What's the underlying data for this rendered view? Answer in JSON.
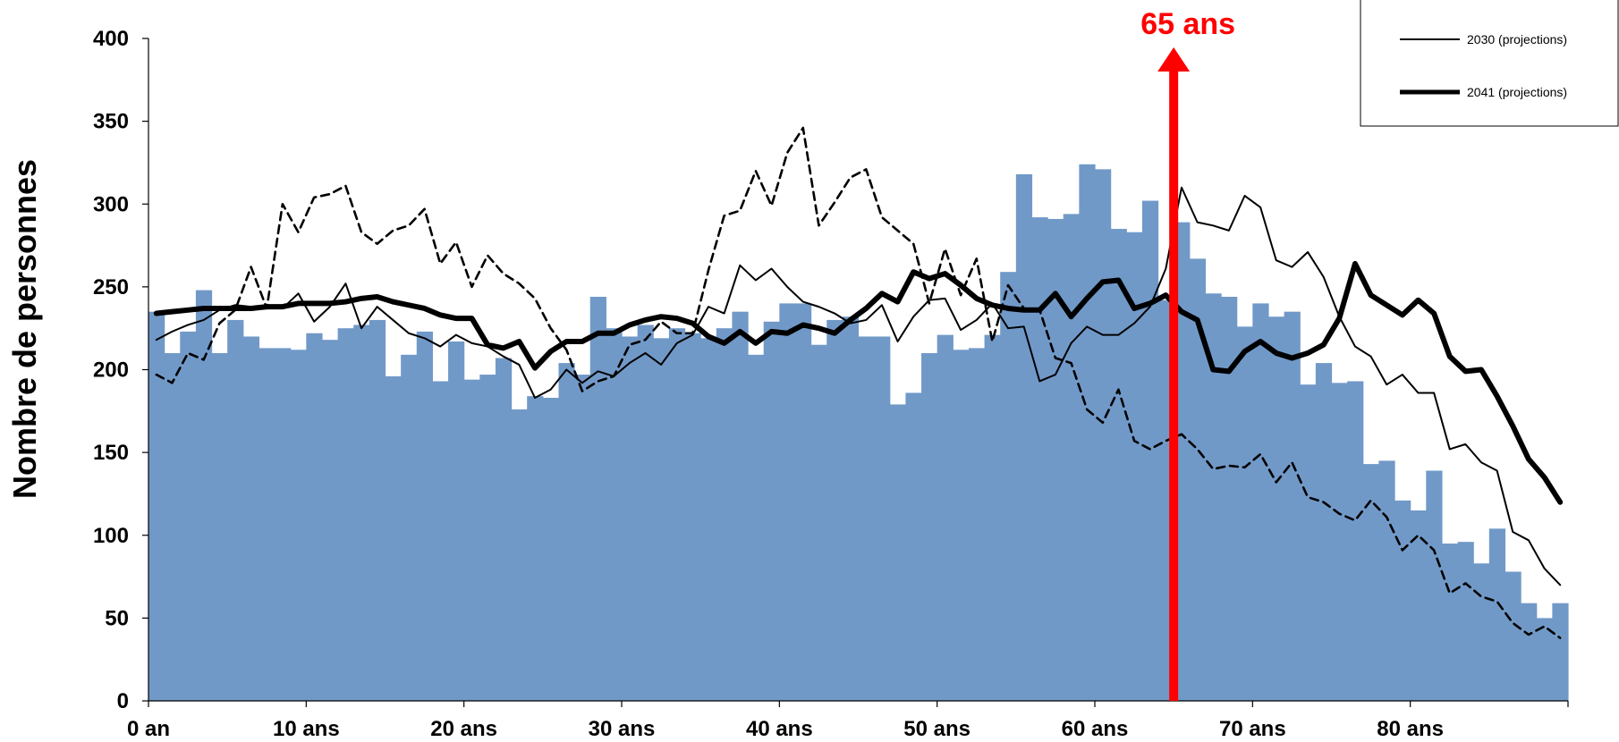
{
  "chart_data": {
    "type": "bar",
    "ylabel": "Nombre de personnes",
    "ylim": [
      0,
      400
    ],
    "yticks": [
      0,
      50,
      100,
      150,
      200,
      250,
      300,
      350,
      400
    ],
    "xlim": [
      0,
      90
    ],
    "xticks": [
      {
        "value": 0,
        "label": "0 an"
      },
      {
        "value": 10,
        "label": "10 ans"
      },
      {
        "value": 20,
        "label": "20 ans"
      },
      {
        "value": 30,
        "label": "30 ans"
      },
      {
        "value": 40,
        "label": "40 ans"
      },
      {
        "value": 50,
        "label": "50 ans"
      },
      {
        "value": 60,
        "label": "60 ans"
      },
      {
        "value": 70,
        "label": "70 ans"
      },
      {
        "value": 80,
        "label": "80 ans"
      }
    ],
    "bar_color": "#7199c8",
    "bars": {
      "x": [
        0,
        1,
        2,
        3,
        4,
        5,
        6,
        7,
        8,
        9,
        10,
        11,
        12,
        13,
        14,
        15,
        16,
        17,
        18,
        19,
        20,
        21,
        22,
        23,
        24,
        25,
        26,
        27,
        28,
        29,
        30,
        31,
        32,
        33,
        34,
        35,
        36,
        37,
        38,
        39,
        40,
        41,
        42,
        43,
        44,
        45,
        46,
        47,
        48,
        49,
        50,
        51,
        52,
        53,
        54,
        55,
        56,
        57,
        58,
        59,
        60,
        61,
        62,
        63,
        64,
        65,
        66,
        67,
        68,
        69,
        70,
        71,
        72,
        73,
        74,
        75,
        76,
        77,
        78,
        79,
        80,
        81,
        82,
        83,
        84,
        85,
        86,
        87,
        88,
        89
      ],
      "values": [
        235,
        210,
        223,
        248,
        210,
        230,
        220,
        213,
        213,
        212,
        222,
        218,
        225,
        227,
        230,
        196,
        209,
        223,
        193,
        217,
        194,
        197,
        207,
        176,
        184,
        183,
        204,
        197,
        244,
        225,
        220,
        227,
        219,
        225,
        222,
        219,
        225,
        235,
        209,
        229,
        240,
        240,
        215,
        230,
        232,
        220,
        220,
        179,
        186,
        210,
        221,
        212,
        213,
        221,
        259,
        318,
        292,
        291,
        294,
        324,
        321,
        285,
        283,
        302,
        242,
        289,
        267,
        246,
        244,
        226,
        240,
        232,
        235,
        191,
        204,
        192,
        193,
        143,
        145,
        121,
        115,
        139,
        95,
        96,
        83,
        104,
        78,
        59,
        50,
        59
      ]
    },
    "series": [
      {
        "label": "2030 (projections)",
        "style": "thin",
        "x": [
          0,
          1,
          2,
          3,
          4,
          5,
          6,
          7,
          8,
          9,
          10,
          11,
          12,
          13,
          14,
          15,
          16,
          17,
          18,
          19,
          20,
          21,
          22,
          23,
          24,
          25,
          26,
          27,
          28,
          29,
          30,
          31,
          32,
          33,
          34,
          35,
          36,
          37,
          38,
          39,
          40,
          41,
          42,
          43,
          44,
          45,
          46,
          47,
          48,
          49,
          50,
          51,
          52,
          53,
          54,
          55,
          56,
          57,
          58,
          59,
          60,
          61,
          62,
          63,
          64,
          65,
          66,
          67,
          68,
          69,
          70,
          71,
          72,
          73,
          74,
          75,
          76,
          77,
          78,
          79,
          80,
          81,
          82,
          83,
          84,
          85,
          86,
          87,
          88,
          89
        ],
        "values": [
          218,
          223,
          227,
          230,
          236,
          239,
          238,
          237,
          237,
          246,
          229,
          238,
          252,
          225,
          238,
          230,
          222,
          219,
          214,
          221,
          216,
          214,
          208,
          203,
          183,
          188,
          200,
          192,
          199,
          196,
          204,
          210,
          203,
          216,
          221,
          238,
          234,
          263,
          254,
          261,
          250,
          241,
          238,
          234,
          228,
          230,
          239,
          217,
          232,
          242,
          243,
          224,
          230,
          240,
          225,
          226,
          193,
          197,
          216,
          226,
          221,
          221,
          228,
          238,
          261,
          310,
          289,
          287,
          284,
          305,
          298,
          266,
          262,
          271,
          256,
          232,
          214,
          208,
          191,
          197,
          186,
          186,
          152,
          155,
          144,
          139,
          102,
          97,
          80,
          70
        ]
      },
      {
        "label": "2041 (projections)",
        "style": "thick",
        "x": [
          0,
          1,
          2,
          3,
          4,
          5,
          6,
          7,
          8,
          9,
          10,
          11,
          12,
          13,
          14,
          15,
          16,
          17,
          18,
          19,
          20,
          21,
          22,
          23,
          24,
          25,
          26,
          27,
          28,
          29,
          30,
          31,
          32,
          33,
          34,
          35,
          36,
          37,
          38,
          39,
          40,
          41,
          42,
          43,
          44,
          45,
          46,
          47,
          48,
          49,
          50,
          51,
          52,
          53,
          54,
          55,
          56,
          57,
          58,
          59,
          60,
          61,
          62,
          63,
          64,
          65,
          66,
          67,
          68,
          69,
          70,
          71,
          72,
          73,
          74,
          75,
          76,
          77,
          78,
          79,
          80,
          81,
          82,
          83,
          84,
          85,
          86,
          87,
          88,
          89
        ],
        "values": [
          234,
          235,
          236,
          237,
          237,
          237,
          237,
          238,
          238,
          240,
          240,
          240,
          241,
          243,
          244,
          241,
          239,
          237,
          233,
          231,
          231,
          215,
          213,
          217,
          201,
          211,
          217,
          217,
          222,
          222,
          227,
          230,
          232,
          231,
          228,
          220,
          216,
          223,
          216,
          223,
          222,
          227,
          225,
          222,
          230,
          237,
          246,
          241,
          259,
          255,
          258,
          251,
          243,
          239,
          237,
          236,
          236,
          246,
          232,
          243,
          253,
          254,
          237,
          240,
          245,
          235,
          230,
          200,
          199,
          211,
          217,
          210,
          207,
          210,
          215,
          231,
          264,
          245,
          239,
          233,
          242,
          234,
          208,
          199,
          200,
          184,
          166,
          146,
          135,
          120
        ]
      },
      {
        "label": "",
        "style": "dashed",
        "x": [
          0,
          1,
          2,
          3,
          4,
          5,
          6,
          7,
          8,
          9,
          10,
          11,
          12,
          13,
          14,
          15,
          16,
          17,
          18,
          19,
          20,
          21,
          22,
          23,
          24,
          25,
          26,
          27,
          28,
          29,
          30,
          31,
          32,
          33,
          34,
          35,
          36,
          37,
          38,
          39,
          40,
          41,
          42,
          43,
          44,
          45,
          46,
          47,
          48,
          49,
          50,
          51,
          52,
          53,
          54,
          55,
          56,
          57,
          58,
          59,
          60,
          61,
          62,
          63,
          64,
          65,
          66,
          67,
          68,
          69,
          70,
          71,
          72,
          73,
          74,
          75,
          76,
          77,
          78,
          79,
          80,
          81,
          82,
          83,
          84,
          85,
          86,
          87,
          88,
          89
        ],
        "values": [
          197,
          192,
          210,
          206,
          228,
          236,
          262,
          237,
          300,
          283,
          304,
          306,
          311,
          283,
          276,
          284,
          287,
          297,
          264,
          277,
          250,
          269,
          258,
          252,
          243,
          225,
          212,
          187,
          193,
          196,
          215,
          218,
          229,
          222,
          222,
          260,
          293,
          296,
          320,
          299,
          331,
          346,
          287,
          301,
          316,
          321,
          292,
          284,
          276,
          240,
          273,
          245,
          267,
          217,
          251,
          237,
          236,
          207,
          204,
          176,
          168,
          188,
          157,
          152,
          157,
          161,
          152,
          140,
          142,
          141,
          149,
          132,
          144,
          123,
          120,
          113,
          109,
          121,
          111,
          91,
          100,
          91,
          65,
          71,
          63,
          60,
          47,
          40,
          45,
          38
        ]
      }
    ],
    "marker": {
      "label": "65 ans",
      "value": 65,
      "color": "#ff0000"
    },
    "legend": {
      "placement": "top-right",
      "entries": [
        "2030 (projections)",
        "2041 (projections)"
      ]
    }
  }
}
